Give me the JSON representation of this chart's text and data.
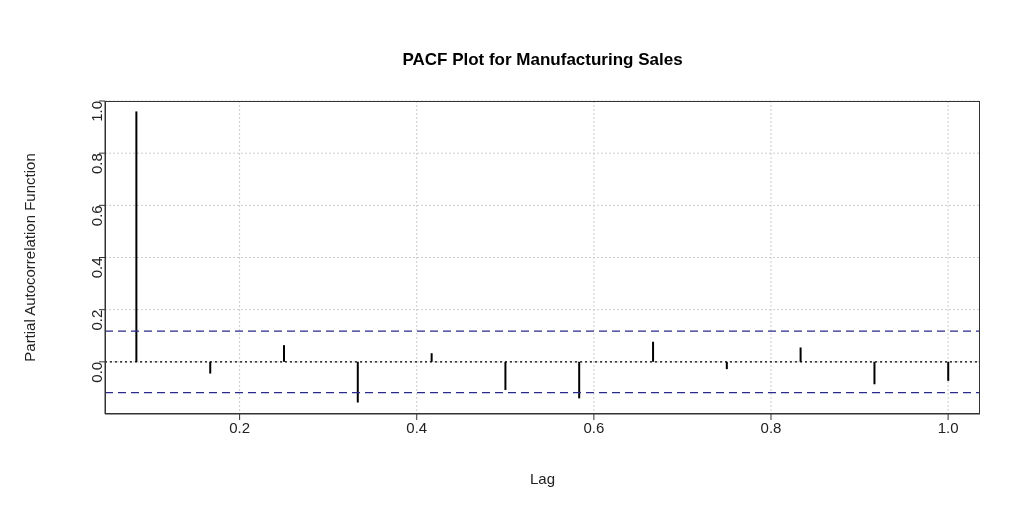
{
  "chart_data": {
    "type": "bar",
    "title": "PACF Plot for Manufacturing Sales",
    "xlabel": "Lag",
    "ylabel": "Partial Autocorrelation Function",
    "x": [
      0.0833,
      0.1667,
      0.25,
      0.3333,
      0.4167,
      0.5,
      0.5833,
      0.6667,
      0.75,
      0.8333,
      0.9167,
      1.0
    ],
    "values": [
      0.96,
      -0.045,
      0.064,
      -0.156,
      0.033,
      -0.108,
      -0.14,
      0.077,
      -0.028,
      0.055,
      -0.086,
      -0.073
    ],
    "color": "#000000",
    "xlim": [
      0.048,
      1.036
    ],
    "xticks": [
      {
        "value": 0.2,
        "label": "0.2"
      },
      {
        "value": 0.4,
        "label": "0.4"
      },
      {
        "value": 0.6,
        "label": "0.6"
      },
      {
        "value": 0.8,
        "label": "0.8"
      },
      {
        "value": 1.0,
        "label": "1.0"
      }
    ],
    "ylim": [
      -0.2,
      1.0
    ],
    "yticks": [
      {
        "value": 0,
        "label": "0.0"
      },
      {
        "value": 0.2,
        "label": "0.2"
      },
      {
        "value": 0.4,
        "label": "0.4"
      },
      {
        "value": 0.6,
        "label": "0.6"
      },
      {
        "value": 0.8,
        "label": "0.8"
      },
      {
        "value": 1.0,
        "label": "1.0"
      }
    ],
    "grid": true,
    "ref_lines": [
      {
        "axis": "y",
        "value": 0,
        "color": "#000000",
        "line_style": "dotted"
      },
      {
        "axis": "y",
        "value": 0.118,
        "color": "#2a2a8a",
        "line_style": "dashed"
      },
      {
        "axis": "y",
        "value": -0.118,
        "color": "#2a2a8a",
        "line_style": "dashed"
      }
    ]
  }
}
